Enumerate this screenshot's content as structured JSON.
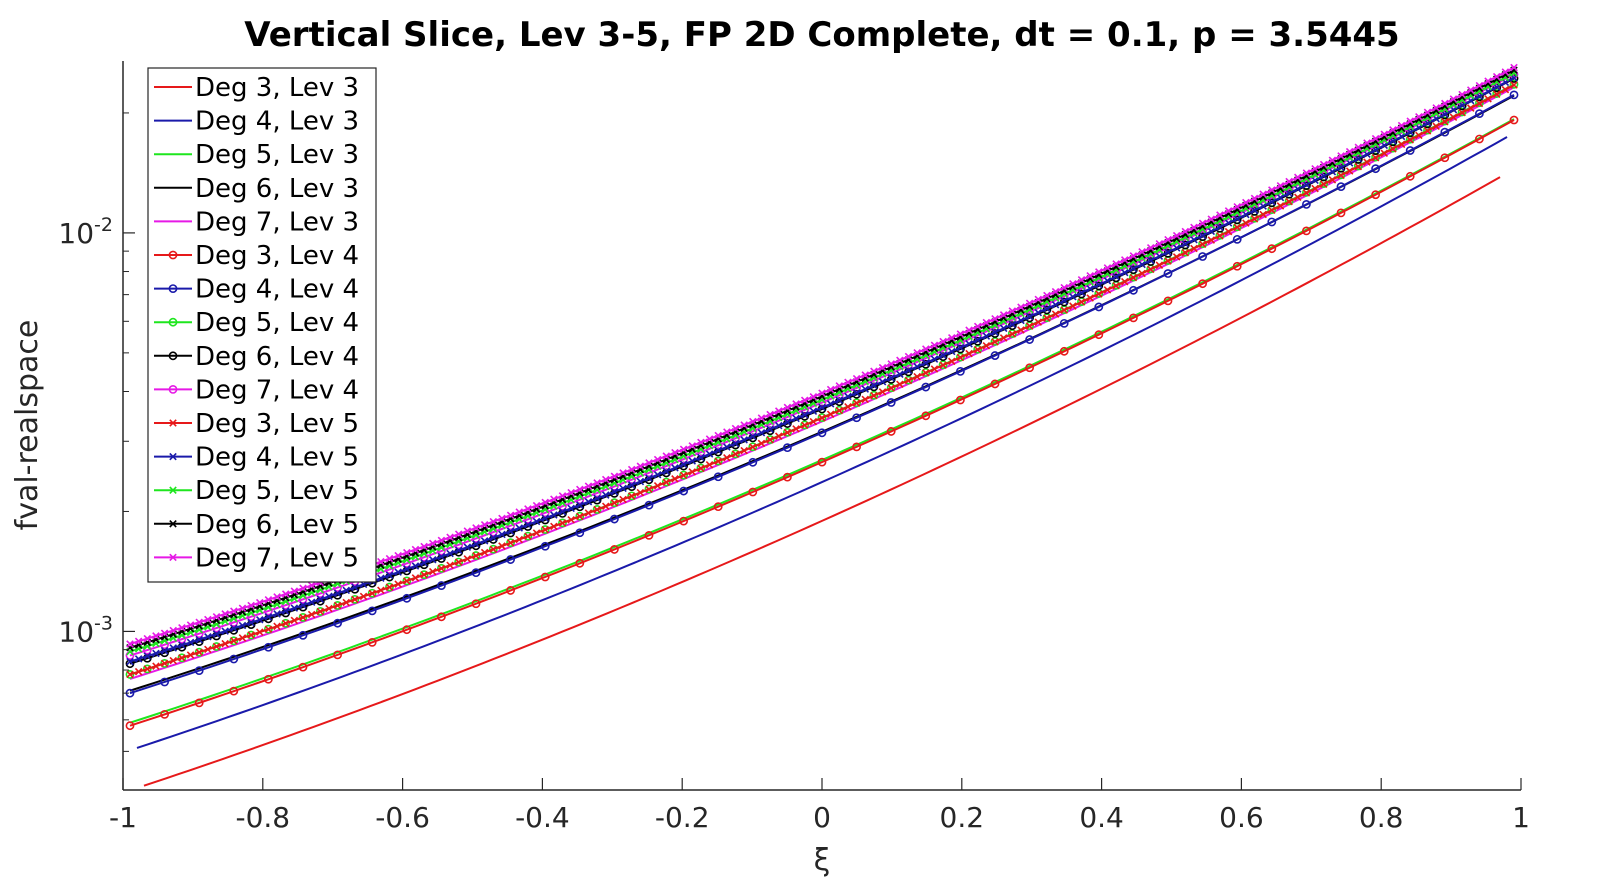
{
  "chart_data": {
    "type": "line",
    "title": "Vertical Slice, Lev 3-5, FP 2D Complete, dt = 0.1, p = 3.5445",
    "xlabel": "ξ",
    "ylabel": "fval-realspace",
    "xlim": [
      -1,
      1
    ],
    "ylim": [
      0.0004,
      0.027
    ],
    "yscale": "log",
    "grid": false,
    "legend_position": "top-left",
    "x_ticks": [
      "-1",
      "-0.8",
      "-0.6",
      "-0.4",
      "-0.2",
      "0",
      "0.2",
      "0.4",
      "0.6",
      "0.8",
      "1"
    ],
    "y_ticks": [
      {
        "base": "10",
        "exp": "-3"
      },
      {
        "base": "10",
        "exp": "-2"
      }
    ],
    "series": [
      {
        "name": "Deg 3, Lev 3",
        "color": "#e6191a",
        "marker": "none",
        "x": [
          -0.97,
          0.97
        ],
        "y": [
          0.00041,
          0.0138
        ]
      },
      {
        "name": "Deg 4, Lev 3",
        "color": "#1a1aaa",
        "marker": "none",
        "x": [
          -0.98,
          0.98
        ],
        "y": [
          0.00051,
          0.0174
        ]
      },
      {
        "name": "Deg 5, Lev 3",
        "color": "#1ee61e",
        "marker": "none",
        "x": [
          -0.99,
          0.99
        ],
        "y": [
          0.00059,
          0.0193
        ]
      },
      {
        "name": "Deg 6, Lev 3",
        "color": "#000000",
        "marker": "none",
        "x": [
          -0.99,
          0.99
        ],
        "y": [
          0.00071,
          0.0221
        ]
      },
      {
        "name": "Deg 7, Lev 3",
        "color": "#e619e6",
        "marker": "none",
        "x": [
          -0.99,
          0.99
        ],
        "y": [
          0.00076,
          0.0232
        ]
      },
      {
        "name": "Deg 3, Lev 4",
        "color": "#e6191a",
        "marker": "o",
        "x": [
          -0.99,
          0.99
        ],
        "y": [
          0.00058,
          0.0192
        ]
      },
      {
        "name": "Deg 4, Lev 4",
        "color": "#1a1aaa",
        "marker": "o",
        "x": [
          -0.99,
          0.99
        ],
        "y": [
          0.0007,
          0.0222
        ]
      },
      {
        "name": "Deg 5, Lev 4",
        "color": "#1ee61e",
        "marker": "o",
        "x": [
          -0.99,
          0.99
        ],
        "y": [
          0.00078,
          0.0236
        ]
      },
      {
        "name": "Deg 6, Lev 4",
        "color": "#000000",
        "marker": "o",
        "x": [
          -0.99,
          0.99
        ],
        "y": [
          0.00083,
          0.0244
        ]
      },
      {
        "name": "Deg 7, Lev 4",
        "color": "#e619e6",
        "marker": "o",
        "x": [
          -0.99,
          0.99
        ],
        "y": [
          0.00087,
          0.025
        ]
      },
      {
        "name": "Deg 3, Lev 5",
        "color": "#e6191a",
        "marker": "x",
        "x": [
          -0.99,
          0.99
        ],
        "y": [
          0.00078,
          0.0235
        ]
      },
      {
        "name": "Deg 4, Lev 5",
        "color": "#1a1aaa",
        "marker": "x",
        "x": [
          -0.99,
          0.99
        ],
        "y": [
          0.00084,
          0.0245
        ]
      },
      {
        "name": "Deg 5, Lev 5",
        "color": "#1ee61e",
        "marker": "x",
        "x": [
          -0.99,
          0.99
        ],
        "y": [
          0.00089,
          0.0252
        ]
      },
      {
        "name": "Deg 6, Lev 5",
        "color": "#000000",
        "marker": "x",
        "x": [
          -0.99,
          0.99
        ],
        "y": [
          0.00091,
          0.0256
        ]
      },
      {
        "name": "Deg 7, Lev 5",
        "color": "#e619e6",
        "marker": "x",
        "x": [
          -0.99,
          0.99
        ],
        "y": [
          0.00093,
          0.026
        ]
      }
    ]
  }
}
